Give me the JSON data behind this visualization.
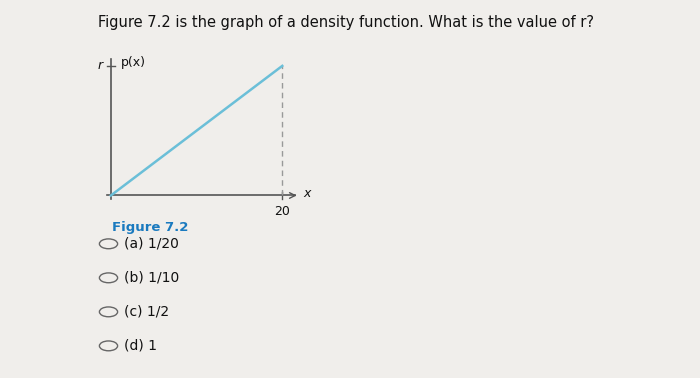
{
  "title": "Figure 7.2 is the graph of a density function. What is the value of r?",
  "title_fontsize": 10.5,
  "figure_caption": "Figure 7.2",
  "figure_caption_color": "#1a7abf",
  "figure_caption_fontsize": 9.5,
  "line_color": "#6bbfd8",
  "axis_color": "#555555",
  "axis_label_x": "x",
  "axis_label_y": "p(x)",
  "x_tick_label": "20",
  "y_tick_label": "r",
  "dashed_line_color": "#999999",
  "choices": [
    "(a) 1/20",
    "(b) 1/10",
    "(c) 1/2",
    "(d) 1"
  ],
  "choices_fontsize": 10,
  "background_color": "#f0eeeb"
}
